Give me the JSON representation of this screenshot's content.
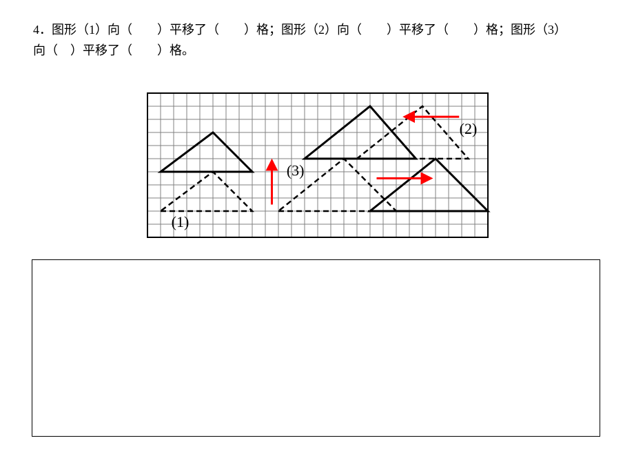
{
  "question": {
    "line1": "4．图形（1）向（　　）平移了（　　）格；图形（2）向（　　）平移了（　　）格；图形（3）",
    "line2": "向（　）平移了（　　）格。"
  },
  "diagram": {
    "grid": {
      "cols": 26,
      "rows": 11,
      "cell": 19,
      "stroke": "#808080",
      "stroke_width": 1,
      "background": "#ffffff"
    },
    "labels": {
      "shape1": "(1)",
      "shape2": "(2)",
      "shape3": "(3)",
      "font_size": 22,
      "color": "#000000"
    },
    "shapes": {
      "shape1_solid": {
        "points": [
          [
            1,
            6
          ],
          [
            8,
            6
          ],
          [
            5,
            3
          ]
        ],
        "stroke": "#000000",
        "stroke_width": 3,
        "dash": null
      },
      "shape1_dashed": {
        "points": [
          [
            1,
            9
          ],
          [
            8,
            9
          ],
          [
            5,
            6
          ]
        ],
        "stroke": "#000000",
        "stroke_width": 2.5,
        "dash": "8,5"
      },
      "shape2_solid": {
        "points": [
          [
            12,
            5
          ],
          [
            20.5,
            5
          ],
          [
            17,
            1
          ]
        ],
        "stroke": "#000000",
        "stroke_width": 3,
        "dash": null
      },
      "shape2_dashed": {
        "points": [
          [
            16,
            5
          ],
          [
            24.5,
            5
          ],
          [
            21,
            1
          ]
        ],
        "stroke": "#000000",
        "stroke_width": 2.5,
        "dash": "8,5"
      },
      "shape3_solid": {
        "points": [
          [
            17,
            9
          ],
          [
            26,
            9
          ],
          [
            22,
            5
          ]
        ],
        "stroke": "#000000",
        "stroke_width": 3,
        "dash": null
      },
      "shape3_dashed": {
        "points": [
          [
            10,
            9
          ],
          [
            19,
            9
          ],
          [
            15,
            5
          ]
        ],
        "stroke": "#000000",
        "stroke_width": 2.5,
        "dash": "8,5"
      }
    },
    "arrows": {
      "color": "#ff0000",
      "stroke_width": 3,
      "arrow1_up": {
        "from": [
          9.5,
          8.5
        ],
        "to": [
          9.5,
          5.3
        ]
      },
      "arrow2_left": {
        "from": [
          23.8,
          1.8
        ],
        "to": [
          19.8,
          1.8
        ]
      },
      "arrow3_right": {
        "from": [
          17.5,
          6.5
        ],
        "to": [
          21.5,
          6.5
        ]
      }
    },
    "outer_border": {
      "stroke": "#000000",
      "stroke_width": 2
    }
  },
  "colors": {
    "page_bg": "#ffffff",
    "text": "#000000",
    "grid": "#808080",
    "arrow": "#ff0000",
    "solid_line": "#000000",
    "dashed_line": "#000000",
    "box_border": "#000000"
  }
}
